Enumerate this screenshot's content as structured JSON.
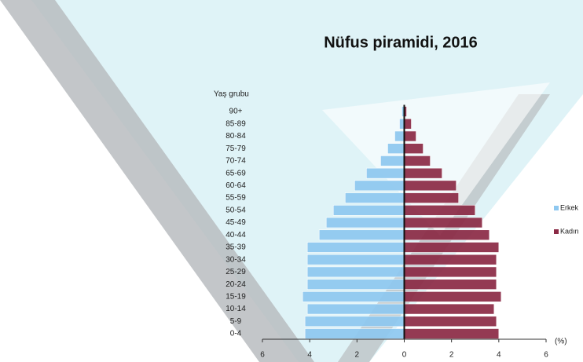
{
  "chart_data": {
    "type": "pyramid",
    "title": "Nüfus piramidi, 2016",
    "y_label": "Yaş grubu",
    "x_label": "(%)",
    "categories": [
      "0-4",
      "5-9",
      "10-14",
      "15-19",
      "20-24",
      "25-29",
      "30-34",
      "35-39",
      "40-44",
      "45-49",
      "50-54",
      "55-59",
      "60-64",
      "65-69",
      "70-74",
      "75-79",
      "80-84",
      "85-89",
      "90+"
    ],
    "series": [
      {
        "name": "Erkek",
        "color": "#8ec8f0",
        "values": [
          -4.2,
          -4.2,
          -4.1,
          -4.3,
          -4.1,
          -4.1,
          -4.1,
          -4.1,
          -3.6,
          -3.3,
          -3.0,
          -2.5,
          -2.1,
          -1.6,
          -1.0,
          -0.7,
          -0.4,
          -0.2,
          -0.1
        ]
      },
      {
        "name": "Kadın",
        "color": "#8b2a45",
        "values": [
          4.0,
          3.9,
          3.8,
          4.1,
          3.9,
          3.9,
          3.9,
          4.0,
          3.6,
          3.3,
          3.0,
          2.3,
          2.2,
          1.6,
          1.1,
          0.8,
          0.5,
          0.3,
          0.1
        ]
      }
    ],
    "xlim": [
      -6,
      6
    ],
    "xticks": [
      {
        "value": -6,
        "label": "6"
      },
      {
        "value": -4,
        "label": "4"
      },
      {
        "value": -2,
        "label": "2"
      },
      0,
      2,
      4,
      6
    ]
  }
}
